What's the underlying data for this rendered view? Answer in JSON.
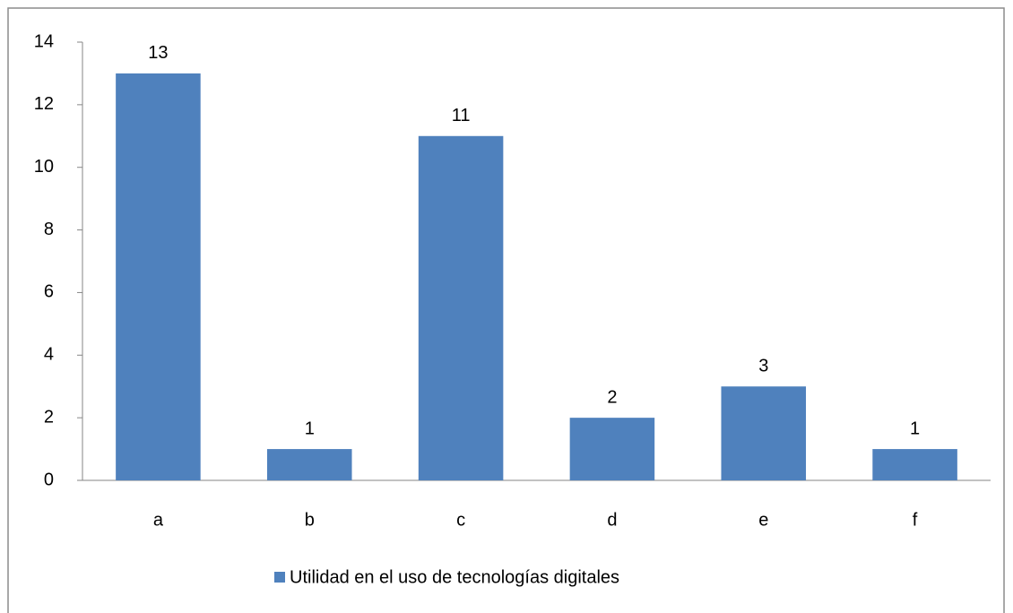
{
  "chart_data": {
    "type": "bar",
    "categories": [
      "a",
      "b",
      "c",
      "d",
      "e",
      "f"
    ],
    "series": [
      {
        "name": "Utilidad en el uso de tecnologías digitales",
        "color": "#4f81bd",
        "values": [
          13,
          1,
          11,
          2,
          3,
          1
        ]
      }
    ],
    "ylim": [
      0,
      14
    ],
    "yticks": [
      0,
      2,
      4,
      6,
      8,
      10,
      12,
      14
    ],
    "grid": false,
    "legend": "bottom"
  }
}
